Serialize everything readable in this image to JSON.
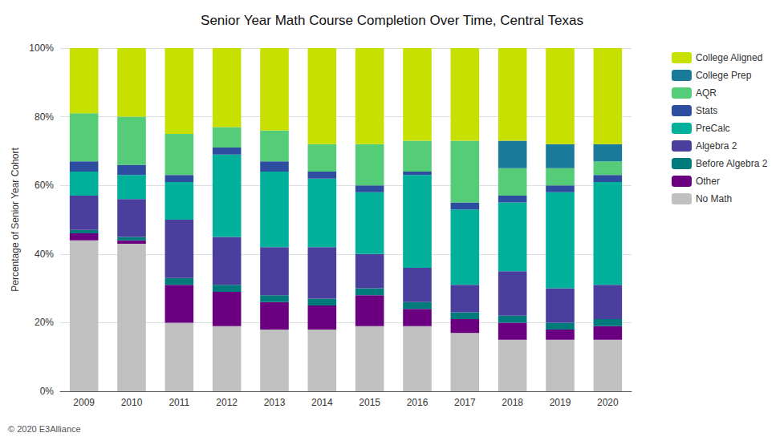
{
  "chart_data": {
    "type": "bar",
    "stacked": true,
    "title": "Senior Year Math Course Completion Over Time, Central Texas",
    "ylabel": "Percentage of Senior Year Cohort",
    "annotation": "© 2020 E3Alliance",
    "categories": [
      "2009",
      "2010",
      "2011",
      "2012",
      "2013",
      "2014",
      "2015",
      "2016",
      "2017",
      "2018",
      "2019",
      "2020"
    ],
    "series": [
      {
        "name": "No Math",
        "color": "#c0c0c0",
        "values": [
          44,
          43,
          20,
          19,
          18,
          18,
          19,
          19,
          17,
          15,
          15,
          15
        ]
      },
      {
        "name": "Other",
        "color": "#6a0080",
        "values": [
          2,
          1,
          11,
          10,
          8,
          7,
          9,
          5,
          4,
          5,
          3,
          4
        ]
      },
      {
        "name": "Before Algebra 2",
        "color": "#007b7b",
        "values": [
          1,
          1,
          2,
          2,
          2,
          2,
          2,
          2,
          2,
          2,
          2,
          2
        ]
      },
      {
        "name": "Algebra 2",
        "color": "#4b3f9e",
        "values": [
          10,
          11,
          17,
          14,
          14,
          15,
          10,
          10,
          8,
          13,
          10,
          10
        ]
      },
      {
        "name": "PreCalc",
        "color": "#00b09b",
        "values": [
          7,
          7,
          11,
          24,
          22,
          20,
          18,
          27,
          22,
          20,
          28,
          30
        ]
      },
      {
        "name": "Stats",
        "color": "#2d4da0",
        "values": [
          3,
          3,
          2,
          2,
          3,
          2,
          2,
          1,
          2,
          2,
          2,
          2
        ]
      },
      {
        "name": "AQR",
        "color": "#55cc77",
        "values": [
          14,
          14,
          12,
          6,
          9,
          8,
          12,
          9,
          18,
          8,
          5,
          4
        ]
      },
      {
        "name": "College Prep",
        "color": "#1a7a9a",
        "values": [
          0,
          0,
          0,
          0,
          0,
          0,
          0,
          0,
          0,
          8,
          7,
          5
        ]
      },
      {
        "name": "College Aligned",
        "color": "#c8e000",
        "values": [
          19,
          20,
          25,
          23,
          24,
          28,
          28,
          27,
          27,
          27,
          28,
          28
        ]
      }
    ],
    "ylim": [
      0,
      100
    ],
    "yticks": [
      {
        "value": 0,
        "label": "0%"
      },
      {
        "value": 20,
        "label": "20%"
      },
      {
        "value": 40,
        "label": "40%"
      },
      {
        "value": 60,
        "label": "60%"
      },
      {
        "value": 80,
        "label": "80%"
      },
      {
        "value": 100,
        "label": "100%"
      }
    ],
    "grid": true,
    "legend": "upper right"
  }
}
